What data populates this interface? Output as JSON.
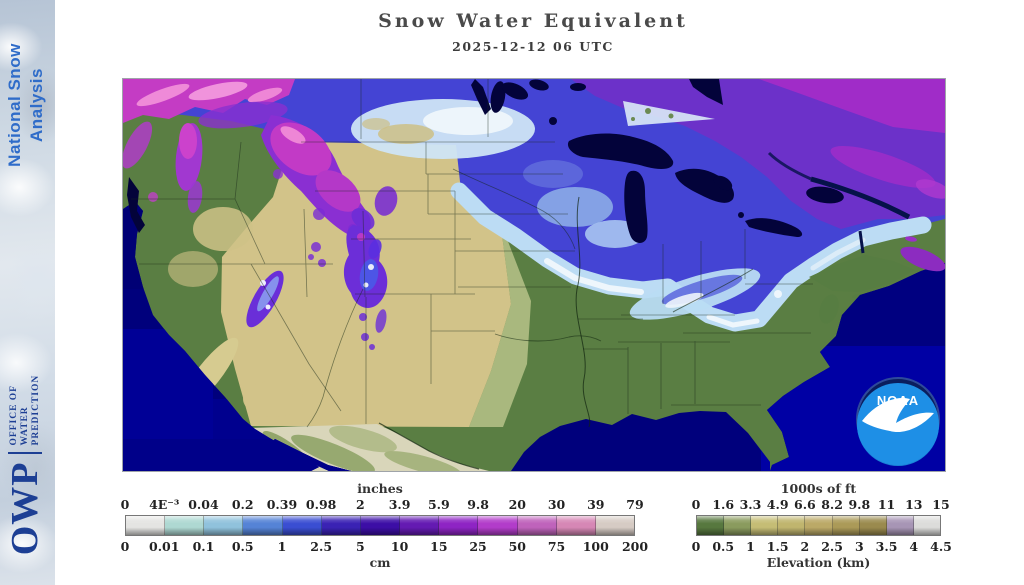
{
  "sidebar": {
    "title_line1": "National Snow",
    "title_line2": "Analysis",
    "brand": "OWP",
    "brand_sub": [
      "OFFICE OF",
      "WATER",
      "PREDICTION"
    ],
    "title_color": "#2f6cc9",
    "brand_color": "#1d3f94"
  },
  "header": {
    "title": "Snow Water Equivalent",
    "subtitle": "2025-12-12 06 UTC"
  },
  "map": {
    "noaa_logo_label": "NOAA",
    "ocean_color": "#00007c"
  },
  "legends": {
    "swe": {
      "top_unit": "inches",
      "bottom_unit": "cm",
      "top_ticks": [
        "0",
        "4E⁻³",
        "0.04",
        "0.2",
        "0.39",
        "0.98",
        "2",
        "3.9",
        "5.9",
        "9.8",
        "20",
        "30",
        "39",
        "79"
      ],
      "bottom_ticks": [
        "0",
        "0.01",
        "0.1",
        "0.5",
        "1",
        "2.5",
        "5",
        "10",
        "15",
        "25",
        "50",
        "75",
        "100",
        "200"
      ],
      "colors": [
        "#e4e4e2",
        "#aed8d2",
        "#90c2dc",
        "#5583d6",
        "#3a4ed2",
        "#3a22b4",
        "#3c0ea6",
        "#641ab2",
        "#8e24c4",
        "#b23cca",
        "#bf63bb",
        "#d687b5",
        "#d6cbc4"
      ]
    },
    "elevation": {
      "top_unit": "1000s of ft",
      "bottom_label": "Elevation (km)",
      "top_ticks": [
        "0",
        "1.6",
        "3.3",
        "4.9",
        "6.6",
        "8.2",
        "9.8",
        "11",
        "13",
        "15"
      ],
      "bottom_ticks": [
        "0",
        "0.5",
        "1",
        "1.5",
        "2",
        "2.5",
        "3",
        "3.5",
        "4",
        "4.5"
      ],
      "colors": [
        "#57783f",
        "#8a9b5e",
        "#c5bd75",
        "#c0b56e",
        "#bba967",
        "#ab9a58",
        "#9a8a4e",
        "#a795b5",
        "#dcdcda"
      ]
    }
  }
}
